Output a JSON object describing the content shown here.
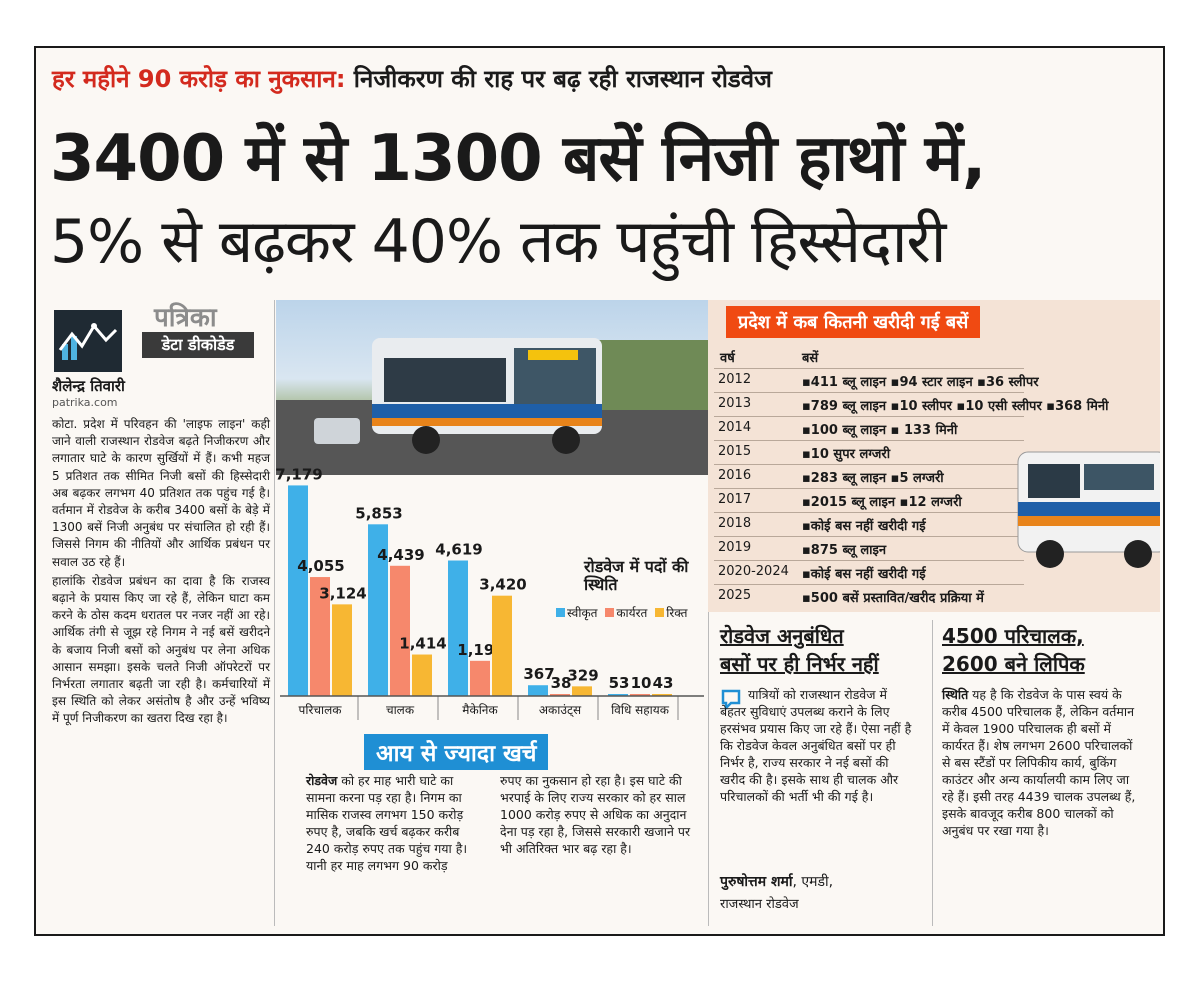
{
  "header": {
    "kicker_red": "हर महीने 90 करोड़ का नुकसान:",
    "kicker_rest": " निजीकरण की राह पर बढ़ रही राजस्थान रोडवेज",
    "headline_line1": "3400 में से 1300 बसें निजी हाथों में,",
    "headline_line2": "5% से बढ़कर 40% तक पहुंची हिस्सेदारी"
  },
  "byline": {
    "brand": "पत्रिका",
    "section": "डेटा डीकोडेड",
    "author": "शैलेन्द्र तिवारी",
    "site": "patrika.com"
  },
  "body": {
    "para1": "कोटा. प्रदेश में परिवहन की 'लाइफ लाइन' कही जाने वाली राजस्थान रोडवेज बढ़ते निजीकरण और लगातार घाटे के कारण सुर्खियों में हैं। कभी महज 5 प्रतिशत तक सीमित निजी बसों की हिस्सेदारी अब बढ़कर लगभग 40 प्रतिशत तक पहुंच गई है। वर्तमान में रोडवेज के करीब 3400 बसों के बेड़े में 1300 बसें निजी अनुबंध पर संचालित हो रही हैं। जिससे निगम की नीतियों और आर्थिक प्रबंधन पर सवाल उठ रहे हैं।",
    "para2": "हालांकि रोडवेज प्रबंधन का दावा है कि राजस्व बढ़ाने के प्रयास किए जा रहे हैं, लेकिन घाटा कम करने के ठोस कदम धरातल पर नजर नहीं आ रहे। आर्थिक तंगी से जूझ रहे निगम ने नई बसें खरीदने के बजाय निजी बसों को अनुबंध पर लेना अधिक आसान समझा। इसके चलते निजी ऑपरेटरों पर निर्भरता लगातार बढ़ती जा रही है। कर्मचारियों में इस स्थिति को लेकर असंतोष है और उन्हें भविष्य में पूर्ण निजीकरण का खतरा दिख रहा है।"
  },
  "chart_data": {
    "type": "bar",
    "title": "रोडवेज में पदों की स्थिति",
    "categories": [
      "परिचालक",
      "चालक",
      "मैकेनिक",
      "अकाउंट्स",
      "विधि सहायक"
    ],
    "series": [
      {
        "name": "स्वीकृत",
        "values": [
          7179,
          5853,
          4619,
          367,
          53
        ],
        "labels": [
          "7,179",
          "5,853",
          "4,619",
          "367",
          "53"
        ]
      },
      {
        "name": "कार्यरत",
        "values": [
          4055,
          4439,
          1199,
          38,
          10
        ],
        "labels": [
          "4,055",
          "4,439",
          "1,199",
          "38",
          "10"
        ]
      },
      {
        "name": "रिक्त",
        "values": [
          3124,
          1414,
          3420,
          329,
          43
        ],
        "labels": [
          "3,124",
          "1,414",
          "3,420",
          "329",
          "43"
        ]
      }
    ],
    "colors": [
      "#3fb0e8",
      "#f6886c",
      "#f7b733"
    ]
  },
  "expense": {
    "banner": "आय से ज्यादा खर्च",
    "col1_lead": "रोडवेज",
    "col1": " को हर माह भारी घाटे का सामना करना पड़ रहा है। निगम का मासिक राजस्व लगभग 150 करोड़ रुपए है, जबकि खर्च बढ़कर करीब 240 करोड़ रुपए तक पहुंच गया है। यानी हर माह लगभग 90 करोड़",
    "col2": "रुपए का नुकसान हो रहा है। इस घाटे की भरपाई के लिए राज्य सरकार को हर साल 1000 करोड़ रुपए से अधिक का अनुदान देना पड़ रहा है, जिससे सरकारी खजाने पर भी अतिरिक्त भार बढ़ रहा है।"
  },
  "purchases": {
    "banner": "प्रदेश में कब कितनी खरीदी गई बसें",
    "col_year": "वर्ष",
    "col_buses": "बसें",
    "rows": [
      {
        "year": "2012",
        "buses": "▪411 ब्लू लाइन ▪94 स्टार लाइन ▪36 स्लीपर"
      },
      {
        "year": "2013",
        "buses": "▪789 ब्लू लाइन ▪10 स्लीपर ▪10 एसी स्लीपर ▪368 मिनी"
      },
      {
        "year": "2014",
        "buses": "▪100 ब्लू लाइन ▪ 133 मिनी"
      },
      {
        "year": "2015",
        "buses": "▪10 सुपर लग्जरी"
      },
      {
        "year": "2016",
        "buses": "▪283 ब्लू लाइन ▪5 लग्जरी"
      },
      {
        "year": "2017",
        "buses": "▪2015 ब्लू लाइन ▪12 लग्जरी"
      },
      {
        "year": "2018",
        "buses": "▪कोई बस नहीं खरीदी गई"
      },
      {
        "year": "2019",
        "buses": "▪875 ब्लू लाइन"
      },
      {
        "year": "2020-2024",
        "buses": "▪कोई बस नहीं खरीदी गई"
      },
      {
        "year": "2025",
        "buses": "▪500 बसें प्रस्तावित/खरीद प्रक्रिया में"
      }
    ]
  },
  "contract": {
    "title_line1": "रोडवेज अनुबंधित",
    "title_line2": "बसों पर ही निर्भर नहीं",
    "quote": "यात्रियों को राजस्थान रोडवेज में बेहतर सुविधाएं उपलब्ध कराने के लिए हरसंभव प्रयास किए जा रहे हैं। ऐसा नहीं है कि रोडवेज केवल अनुबंधित बसों पर ही निर्भर है, राज्य सरकार ने नई बसों की खरीद की है। इसके साथ ही चालक और परिचालकों की भर्ती भी की गई है।",
    "name": "पुरुषोत्तम शर्मा",
    "name_suffix": ", एमडी,",
    "role": "राजस्थान रोडवेज"
  },
  "clerks": {
    "title_line1": "4500 परिचालक,",
    "title_line2": "2600 बने लिपिक",
    "lead": "स्थिति",
    "text": " यह है कि रोडवेज के पास स्वयं के करीब 4500 परिचालक हैं, लेकिन वर्तमान में केवल 1900 परिचालक ही बसों में कार्यरत हैं। शेष लगभग 2600 परिचालकों से बस स्टैंडों पर लिपिकीय कार्य, बुकिंग काउंटर और अन्य कार्यालयी काम लिए जा रहे हैं। इसी तरह 4439 चालक उपलब्ध हैं, इसके बावजूद करीब 800 चालकों को अनुबंध पर रखा गया है।"
  }
}
